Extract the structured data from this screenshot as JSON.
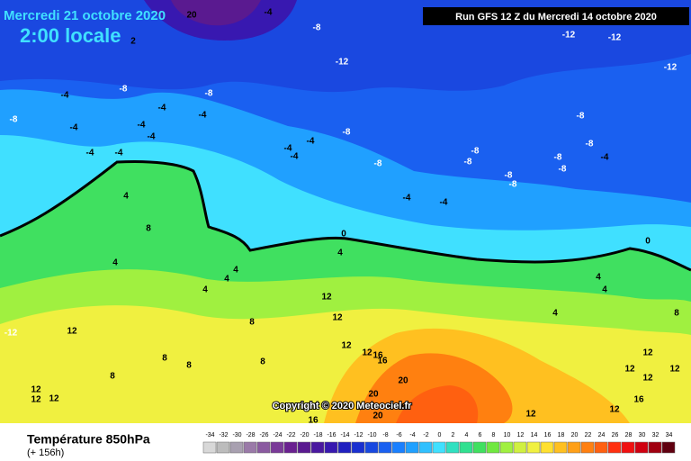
{
  "header": {
    "title": "Mercredi 21 octobre 2020",
    "subtitle": "2:00 locale",
    "run": "Run GFS 12 Z du Mercredi 14 octobre 2020"
  },
  "copyright": "Copyright © 2020 Meteociel.fr",
  "legend": {
    "title": "Température 850hPa",
    "lead": "(+ 156h)",
    "ticks": [
      -34,
      -32,
      -30,
      -28,
      -26,
      -24,
      -22,
      -20,
      -18,
      -16,
      -14,
      -12,
      -10,
      -8,
      -6,
      -4,
      -2,
      0,
      2,
      4,
      6,
      8,
      10,
      12,
      14,
      16,
      18,
      20,
      22,
      24,
      26,
      28,
      30,
      32,
      34
    ],
    "colors": [
      "#d8d8d8",
      "#bcbcbc",
      "#a8a0b0",
      "#9a7aa8",
      "#8a5aa0",
      "#7a3a98",
      "#6a2090",
      "#5a1a90",
      "#4a18a0",
      "#3818b0",
      "#2020c0",
      "#1a30d0",
      "#1848e0",
      "#1a60f0",
      "#1a80ff",
      "#20a0ff",
      "#30c0ff",
      "#40e0ff",
      "#30e0c0",
      "#30e090",
      "#40e060",
      "#70e840",
      "#a0f040",
      "#d0f040",
      "#f0f040",
      "#ffe030",
      "#ffc020",
      "#ffa018",
      "#ff8010",
      "#ff6010",
      "#ff3010",
      "#f01010",
      "#d00010",
      "#a00010",
      "#600010"
    ]
  },
  "map_labels": [
    20,
    -4,
    -8,
    2,
    -12,
    -12,
    -12,
    -12,
    -8,
    -8,
    -8,
    -4,
    -4,
    -4,
    -4,
    -4,
    -4,
    -4,
    -4,
    -4,
    -4,
    -4,
    -8,
    -8,
    -8,
    -8,
    -8,
    -8,
    -8,
    -8,
    -8,
    -8,
    -4,
    -4,
    -4,
    4,
    8,
    4,
    4,
    4,
    4,
    0,
    0,
    4,
    4,
    4,
    4,
    8,
    12,
    12,
    8,
    12,
    -12,
    12,
    12,
    16,
    16,
    8,
    8,
    8,
    8,
    12,
    12,
    12,
    12,
    12,
    12,
    12,
    16,
    20,
    20,
    16,
    16,
    20,
    12,
    12
  ]
}
